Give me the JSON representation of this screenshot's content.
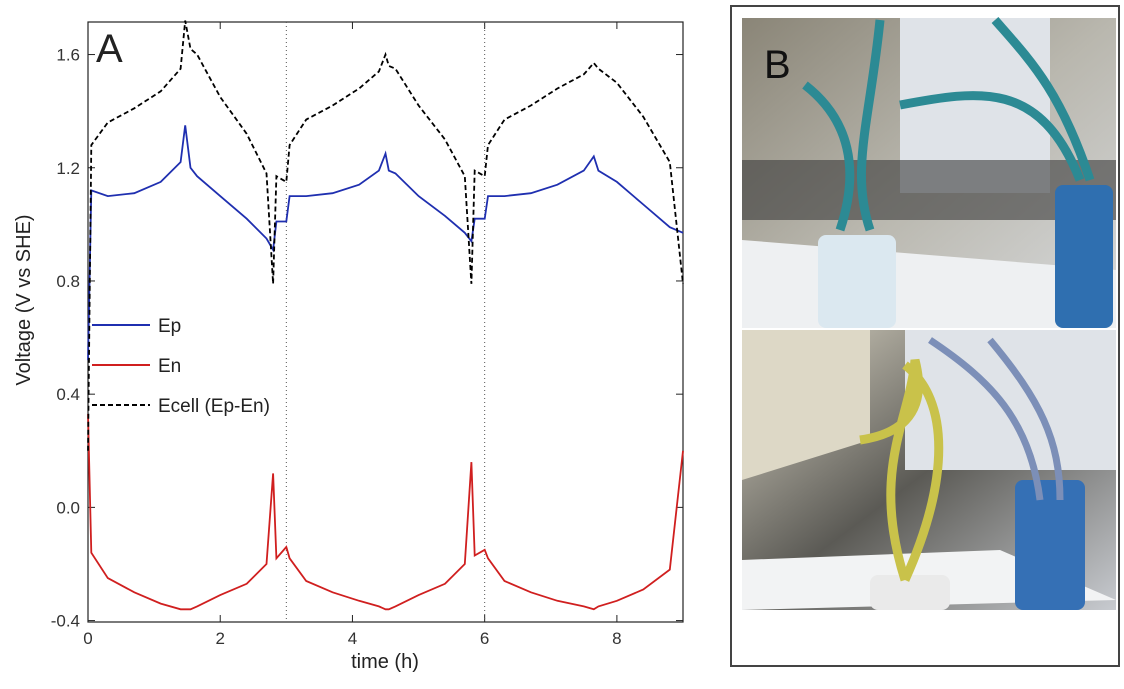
{
  "chart_data": {
    "type": "line",
    "panel_label": "A",
    "x_label": "time (h)",
    "y_label": "Voltage (V vs SHE)",
    "x": [
      0,
      0.05,
      0.3,
      0.7,
      1.1,
      1.4,
      1.47,
      1.55,
      1.65,
      2.0,
      2.4,
      2.7,
      2.8,
      2.85,
      3.0,
      3.05,
      3.3,
      3.7,
      4.1,
      4.4,
      4.5,
      4.55,
      4.65,
      5.0,
      5.4,
      5.7,
      5.8,
      5.85,
      6.0,
      6.05,
      6.3,
      6.7,
      7.1,
      7.5,
      7.65,
      7.72,
      8.0,
      8.4,
      8.8,
      9.0
    ],
    "series": [
      {
        "name": "Ep",
        "color": "#1f2fb0",
        "dash": false,
        "values": [
          0.52,
          1.12,
          1.1,
          1.11,
          1.15,
          1.22,
          1.35,
          1.2,
          1.17,
          1.1,
          1.02,
          0.95,
          0.91,
          1.01,
          1.01,
          1.1,
          1.1,
          1.11,
          1.14,
          1.19,
          1.25,
          1.19,
          1.18,
          1.1,
          1.03,
          0.97,
          0.94,
          1.02,
          1.02,
          1.1,
          1.1,
          1.11,
          1.14,
          1.19,
          1.24,
          1.19,
          1.15,
          1.07,
          0.99,
          0.97
        ]
      },
      {
        "name": "En",
        "color": "#d01f1f",
        "dash": false,
        "values": [
          0.33,
          -0.16,
          -0.25,
          -0.3,
          -0.34,
          -0.36,
          -0.36,
          -0.36,
          -0.35,
          -0.31,
          -0.27,
          -0.2,
          0.12,
          -0.18,
          -0.14,
          -0.18,
          -0.26,
          -0.3,
          -0.33,
          -0.35,
          -0.36,
          -0.36,
          -0.35,
          -0.31,
          -0.27,
          -0.2,
          0.16,
          -0.17,
          -0.15,
          -0.18,
          -0.26,
          -0.3,
          -0.33,
          -0.35,
          -0.36,
          -0.35,
          -0.33,
          -0.29,
          -0.22,
          0.2
        ]
      },
      {
        "name": "Ecell (Ep-En)",
        "color": "#000000",
        "dash": true,
        "values": [
          0.2,
          1.28,
          1.36,
          1.41,
          1.47,
          1.55,
          1.72,
          1.62,
          1.6,
          1.45,
          1.32,
          1.18,
          0.79,
          1.17,
          1.15,
          1.28,
          1.37,
          1.42,
          1.48,
          1.54,
          1.6,
          1.56,
          1.55,
          1.42,
          1.3,
          1.17,
          0.79,
          1.19,
          1.17,
          1.28,
          1.37,
          1.42,
          1.48,
          1.53,
          1.57,
          1.55,
          1.5,
          1.38,
          1.22,
          0.79
        ]
      }
    ],
    "xlim": [
      0,
      9
    ],
    "xticks": [
      0,
      2,
      4,
      6,
      8
    ],
    "ylim": [
      -0.405,
      1.715
    ],
    "yticks": [
      1.6,
      1.2,
      0.8,
      0.4,
      {
        "value": 0,
        "label": "0.0"
      },
      -0.4
    ],
    "vlines": [
      3,
      6
    ],
    "grid": false
  },
  "photo": {
    "panel_label": "B"
  }
}
